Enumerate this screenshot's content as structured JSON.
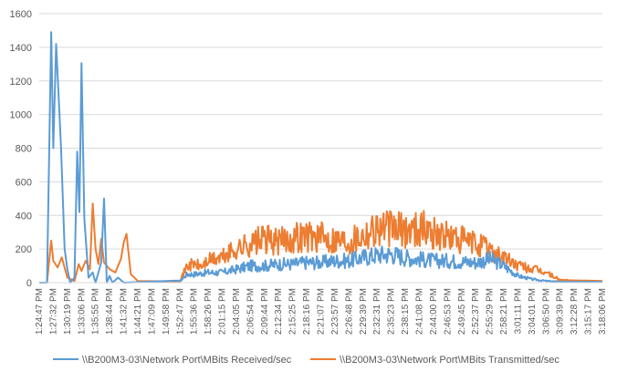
{
  "chart_data": {
    "type": "line",
    "title": "",
    "xlabel": "",
    "ylabel": "",
    "ylim": [
      0,
      1600
    ],
    "yticks": [
      0,
      200,
      400,
      600,
      800,
      1000,
      1200,
      1400,
      1600
    ],
    "grid": "horizontal",
    "legend_position": "bottom",
    "colors": [
      "#5B9BD5",
      "#ED7D31"
    ],
    "x_tick_labels": [
      "1:24:47 PM",
      "1:27:32 PM",
      "1:30:19 PM",
      "1:33:06 PM",
      "1:35:55 PM",
      "1:38:44 PM",
      "1:41:32 PM",
      "1:44:21 PM",
      "1:47:09 PM",
      "1:49:58 PM",
      "1:52:47 PM",
      "1:55:36 PM",
      "1:58:26 PM",
      "2:01:15 PM",
      "2:04:05 PM",
      "2:06:54 PM",
      "2:09:44 PM",
      "2:12:34 PM",
      "2:15:25 PM",
      "2:18:16 PM",
      "2:21:07 PM",
      "2:23:57 PM",
      "2:26:48 PM",
      "2:29:39 PM",
      "2:32:31 PM",
      "2:35:23 PM",
      "2:38:15 PM",
      "2:41:08 PM",
      "2:44:00 PM",
      "2:46:53 PM",
      "2:49:45 PM",
      "2:52:37 PM",
      "2:55:29 PM",
      "2:58:21 PM",
      "3:01:11 PM",
      "3:04:01 PM",
      "3:06:50 PM",
      "3:09:39 PM",
      "3:12:28 PM",
      "3:15:17 PM",
      "3:18:06 PM"
    ],
    "series": [
      {
        "name": "\\\\B200M3-03\\Network Port\\MBits Received/sec",
        "color": "#5B9BD5",
        "points": [
          [
            0,
            0
          ],
          [
            0.55,
            0
          ],
          [
            0.85,
            1490
          ],
          [
            1.0,
            800
          ],
          [
            1.2,
            1420
          ],
          [
            1.35,
            1160
          ],
          [
            1.55,
            800
          ],
          [
            1.8,
            200
          ],
          [
            2.0,
            80
          ],
          [
            2.2,
            0
          ],
          [
            2.5,
            30
          ],
          [
            2.7,
            780
          ],
          [
            2.85,
            420
          ],
          [
            3.0,
            1305
          ],
          [
            3.2,
            380
          ],
          [
            3.5,
            30
          ],
          [
            3.8,
            60
          ],
          [
            4.0,
            0
          ],
          [
            4.4,
            120
          ],
          [
            4.6,
            500
          ],
          [
            4.8,
            0
          ],
          [
            5.0,
            40
          ],
          [
            5.2,
            0
          ],
          [
            5.6,
            30
          ],
          [
            6.0,
            0
          ],
          [
            10.0,
            10
          ],
          [
            10.5,
            50
          ],
          [
            11.0,
            50
          ],
          [
            12.0,
            60
          ],
          [
            13.0,
            60
          ],
          [
            14.0,
            80
          ],
          [
            15.0,
            100
          ],
          [
            16.0,
            100
          ],
          [
            17.0,
            110
          ],
          [
            18.0,
            110
          ],
          [
            19.0,
            120
          ],
          [
            20.0,
            120
          ],
          [
            21.0,
            130
          ],
          [
            22.0,
            130
          ],
          [
            23.0,
            150
          ],
          [
            24.0,
            165
          ],
          [
            25.0,
            170
          ],
          [
            26.0,
            150
          ],
          [
            27.0,
            140
          ],
          [
            28.0,
            130
          ],
          [
            29.0,
            130
          ],
          [
            30.0,
            125
          ],
          [
            31.0,
            120
          ],
          [
            32.0,
            140
          ],
          [
            33.0,
            100
          ],
          [
            34.0,
            40
          ],
          [
            35.0,
            20
          ],
          [
            36.0,
            10
          ],
          [
            37.0,
            5
          ],
          [
            40.0,
            5
          ]
        ]
      },
      {
        "name": "\\\\B200M3-03\\Network Port\\MBits Transmitted/sec",
        "color": "#ED7D31",
        "points": [
          [
            0,
            0
          ],
          [
            0.55,
            0
          ],
          [
            0.85,
            250
          ],
          [
            1.0,
            130
          ],
          [
            1.3,
            90
          ],
          [
            1.6,
            150
          ],
          [
            2.0,
            30
          ],
          [
            2.5,
            10
          ],
          [
            2.8,
            110
          ],
          [
            3.0,
            70
          ],
          [
            3.3,
            130
          ],
          [
            3.6,
            80
          ],
          [
            3.8,
            470
          ],
          [
            4.0,
            200
          ],
          [
            4.2,
            110
          ],
          [
            4.4,
            260
          ],
          [
            4.6,
            120
          ],
          [
            5.0,
            80
          ],
          [
            5.4,
            60
          ],
          [
            5.8,
            140
          ],
          [
            6.0,
            240
          ],
          [
            6.2,
            290
          ],
          [
            6.5,
            50
          ],
          [
            7.0,
            10
          ],
          [
            10.0,
            10
          ],
          [
            10.5,
            100
          ],
          [
            11.0,
            110
          ],
          [
            11.5,
            95
          ],
          [
            12.0,
            130
          ],
          [
            13.0,
            150
          ],
          [
            14.0,
            200
          ],
          [
            15.0,
            230
          ],
          [
            16.0,
            260
          ],
          [
            17.0,
            240
          ],
          [
            18.0,
            270
          ],
          [
            19.0,
            280
          ],
          [
            20.0,
            270
          ],
          [
            21.0,
            260
          ],
          [
            22.0,
            250
          ],
          [
            23.0,
            290
          ],
          [
            24.0,
            330
          ],
          [
            25.0,
            320
          ],
          [
            26.0,
            310
          ],
          [
            27.0,
            330
          ],
          [
            28.0,
            300
          ],
          [
            29.0,
            270
          ],
          [
            30.0,
            250
          ],
          [
            31.0,
            230
          ],
          [
            32.0,
            200
          ],
          [
            33.0,
            150
          ],
          [
            34.0,
            100
          ],
          [
            35.0,
            80
          ],
          [
            36.0,
            60
          ],
          [
            37.0,
            15
          ],
          [
            40.0,
            10
          ]
        ]
      }
    ]
  }
}
